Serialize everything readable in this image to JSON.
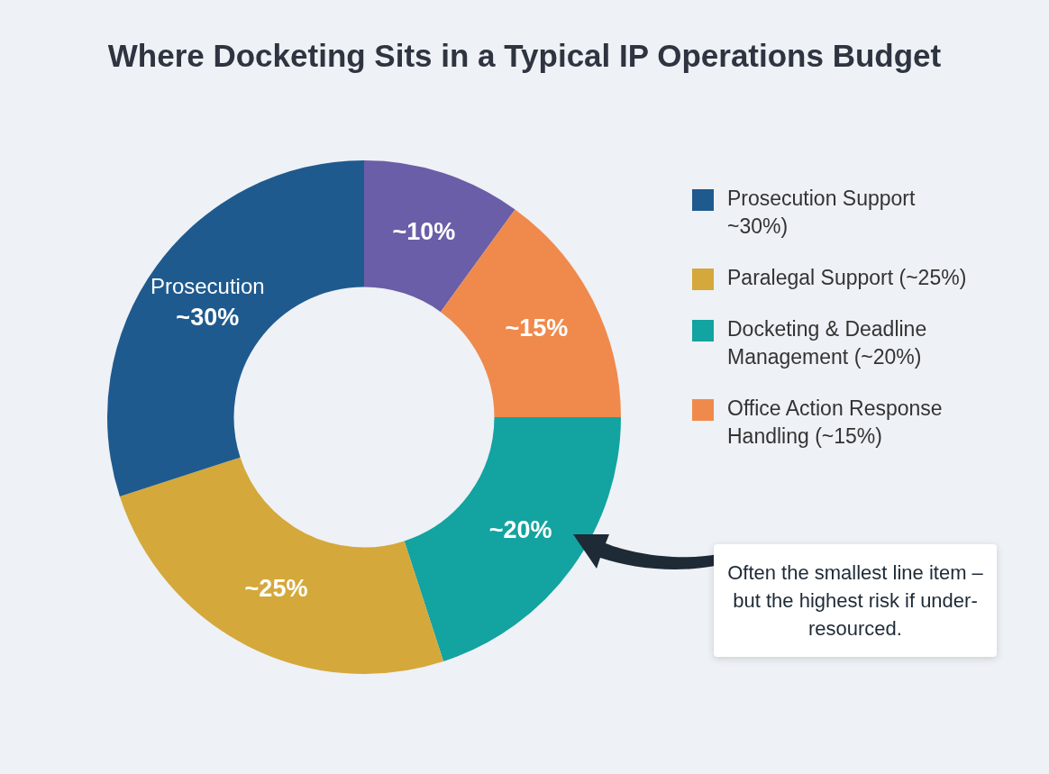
{
  "chart_data": {
    "type": "donut",
    "title": "Where Docketing Sits in a Typical IP Operations Budget",
    "categories": [
      null,
      "Office Action Response Handling (~15%)",
      "Docketing & Deadline Management (~20%)",
      "Paralegal Support (~25%)",
      "Prosecution Support ~30%)"
    ],
    "values": [
      10,
      15,
      20,
      25,
      30
    ],
    "colors": [
      "#6a5ea8",
      "#ef8a4c",
      "#13a3a0",
      "#d4a83a",
      "#1f5a8e"
    ],
    "value_labels": [
      "~10%",
      "~15%",
      "~20%",
      "~25%",
      "Prosecution\n~30%"
    ],
    "legend": "right",
    "annotations": [
      "Often the smallest line item – but the highest risk if under-resourced."
    ]
  }
}
